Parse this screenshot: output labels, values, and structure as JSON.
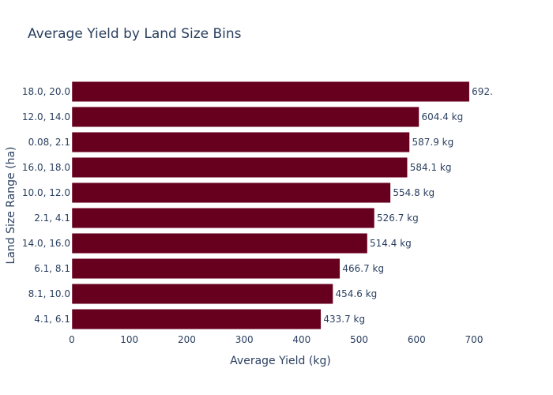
{
  "chart_data": {
    "type": "bar",
    "orientation": "horizontal",
    "title": "Average Yield by Land Size Bins",
    "xlabel": "Average Yield (kg)",
    "ylabel": "Land Size Range (ha)",
    "categories": [
      "18.0, 20.0",
      "12.0, 14.0",
      "0.08, 2.1",
      "16.0, 18.0",
      "10.0, 12.0",
      "2.1, 4.1",
      "14.0, 16.0",
      "6.1, 8.1",
      "8.1, 10.0",
      "4.1, 6.1"
    ],
    "values": [
      692,
      604.4,
      587.9,
      584.1,
      554.8,
      526.7,
      514.4,
      466.7,
      454.6,
      433.7
    ],
    "data_labels": [
      "692.",
      "604.4 kg",
      "587.9 kg",
      "584.1 kg",
      "554.8 kg",
      "526.7 kg",
      "514.4 kg",
      "466.7 kg",
      "454.6 kg",
      "433.7 kg"
    ],
    "x_ticks": [
      "0",
      "100",
      "200",
      "300",
      "400",
      "500",
      "600",
      "700"
    ],
    "xlim": [
      0,
      700
    ],
    "grid": false,
    "bar_color": "#67001f"
  }
}
